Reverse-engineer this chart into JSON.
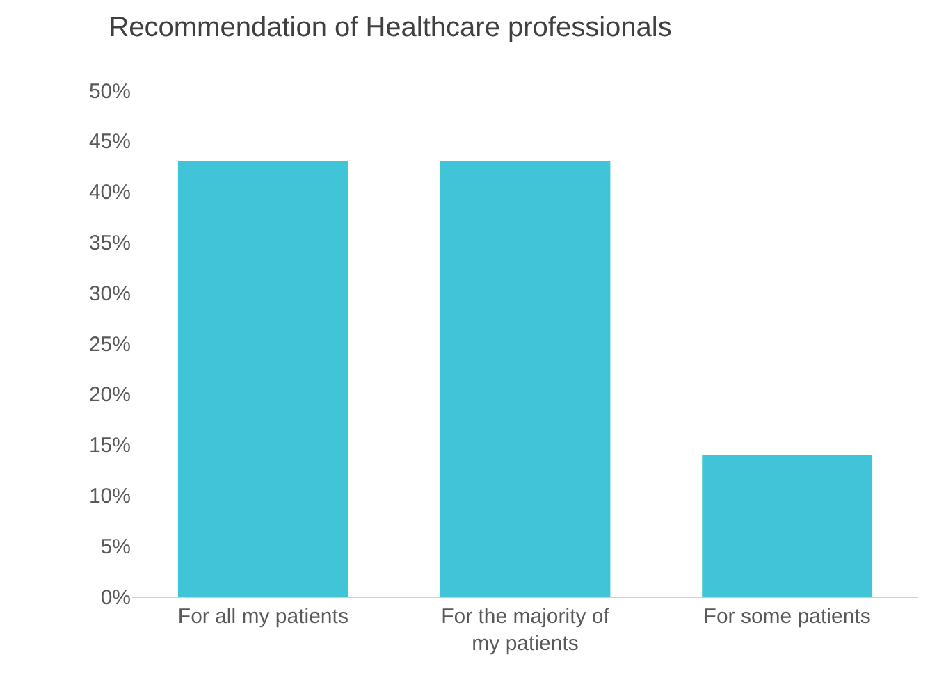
{
  "chart_data": {
    "type": "bar",
    "title": "Recommendation of Healthcare professionals",
    "categories": [
      "For all my patients",
      "For the majority of my patients",
      "For some patients"
    ],
    "values": [
      43,
      43,
      14
    ],
    "color": "#40c4d8",
    "ylim": [
      0,
      50
    ],
    "yticks": [
      {
        "value": 0,
        "label": "0%"
      },
      {
        "value": 5,
        "label": "5%"
      },
      {
        "value": 10,
        "label": "10%"
      },
      {
        "value": 15,
        "label": "15%"
      },
      {
        "value": 20,
        "label": "20%"
      },
      {
        "value": 25,
        "label": "25%"
      },
      {
        "value": 30,
        "label": "30%"
      },
      {
        "value": 35,
        "label": "35%"
      },
      {
        "value": 40,
        "label": "40%"
      },
      {
        "value": 45,
        "label": "45%"
      },
      {
        "value": 50,
        "label": "50%"
      }
    ]
  }
}
